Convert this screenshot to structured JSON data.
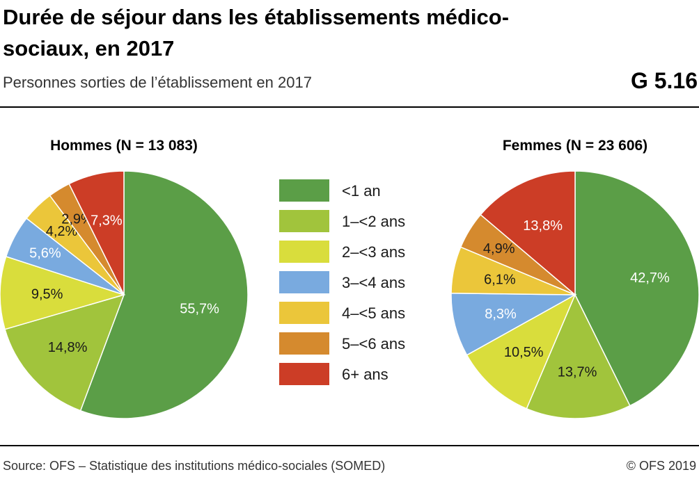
{
  "header": {
    "title": "Durée de séjour dans les établissements médico-sociaux, en 2017",
    "subtitle": "Personnes sorties de l’établissement en 2017",
    "code": "G 5.16"
  },
  "footer": {
    "source": "Source: OFS – Statistique des institutions médico-sociales (SOMED)",
    "copyright": "© OFS 2019"
  },
  "chart_data": {
    "type": "pie",
    "categories": [
      "<1 an",
      "1–<2 ans",
      "2–<3 ans",
      "3–<4 ans",
      "4–<5 ans",
      "5–<6 ans",
      "6+ ans"
    ],
    "colors": [
      "#5b9e47",
      "#a1c43c",
      "#d9dd3c",
      "#79aadf",
      "#ebc63a",
      "#d58a2e",
      "#cc3d26"
    ],
    "legend_position": "center",
    "series": [
      {
        "name": "Hommes (N = 13 083)",
        "values": [
          55.7,
          14.8,
          9.5,
          5.6,
          4.2,
          2.9,
          7.3
        ],
        "labels": [
          "55,7%",
          "14,8%",
          "9,5%",
          "5,6%",
          "4,2%",
          "2,9%",
          "7,3%"
        ]
      },
      {
        "name": "Femmes (N = 23 606)",
        "values": [
          42.7,
          13.7,
          10.5,
          8.3,
          6.1,
          4.9,
          13.8
        ],
        "labels": [
          "42,7%",
          "13,7%",
          "10,5%",
          "8,3%",
          "6,1%",
          "4,9%",
          "13,8%"
        ]
      }
    ]
  }
}
